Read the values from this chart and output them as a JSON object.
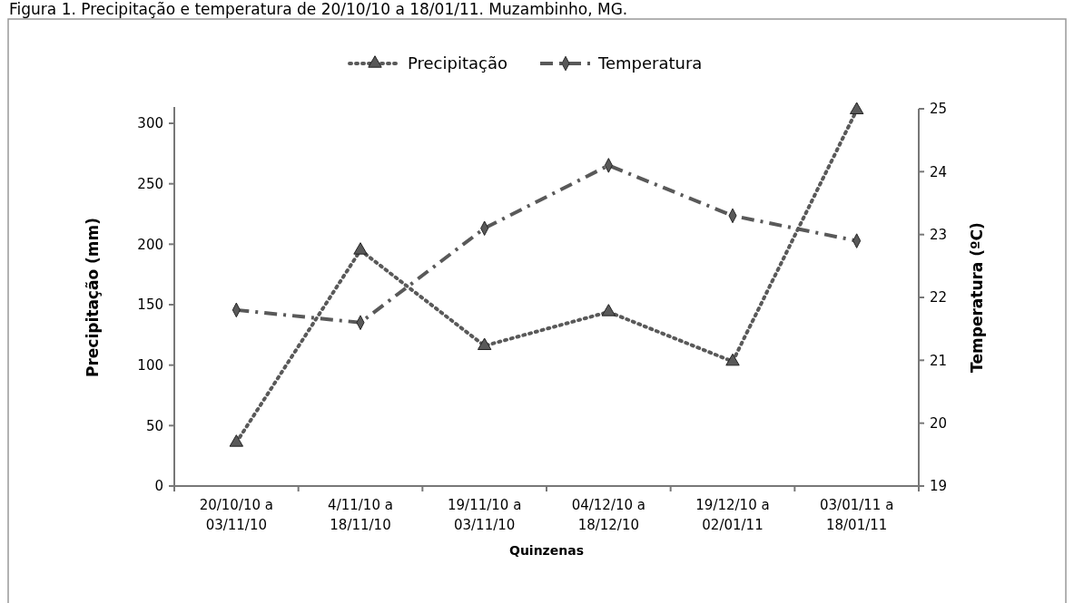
{
  "chart_data": {
    "type": "line",
    "title": "Figura 1. Precipitação e temperatura de 20/10/10 a 18/01/11. Muzambinho, MG.",
    "xlabel": "Quinzenas",
    "ylabel": "Precipitação (mm)",
    "y2label": "Temperatura (ºC)",
    "categories": [
      "20/10/10 a 03/11/10",
      "4/11/10 a 18/11/10",
      "19/11/10 a 03/11/10",
      "04/12/10 a 18/12/10",
      "19/12/10 a 02/01/11",
      "03/01/11 a 18/01/11"
    ],
    "series": [
      {
        "name": "Precipitação",
        "color": "#595959",
        "marker": "triangle",
        "line_style": "dotted",
        "values": [
          36,
          195,
          116,
          144,
          103,
          311
        ]
      },
      {
        "name": "Temperatura",
        "color": "#595959",
        "marker": "diamond",
        "line_style": "dashed",
        "axis": "y2",
        "values": [
          21.8,
          21.6,
          23.1,
          24.1,
          23.3,
          22.9
        ]
      }
    ],
    "ylim": [
      0,
      312
    ],
    "yticks": [
      0,
      50,
      100,
      150,
      200,
      250,
      300
    ],
    "y2lim": [
      19,
      25
    ],
    "y2ticks": [
      19,
      20,
      21,
      22,
      23,
      24,
      25
    ],
    "legend": "top",
    "grid": false
  }
}
